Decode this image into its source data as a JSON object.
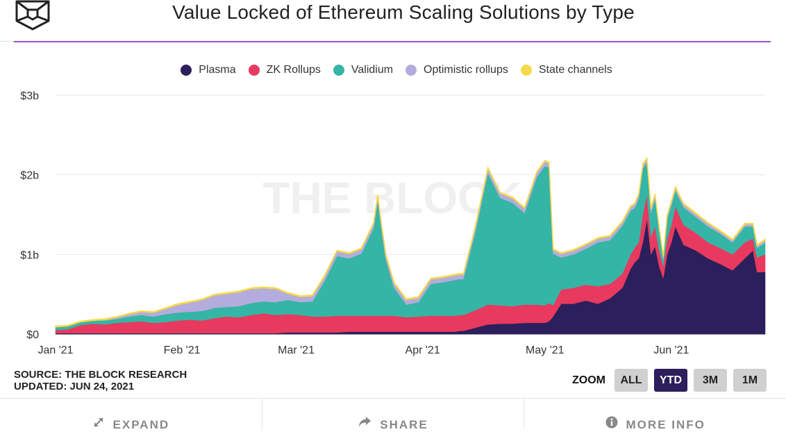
{
  "header": {
    "title": "Value Locked of Ethereum Scaling Solutions by Type",
    "logo_icon": "the-block-cube-logo"
  },
  "legend": [
    {
      "name": "Plasma",
      "color": "#2b1f5c"
    },
    {
      "name": "ZK Rollups",
      "color": "#e8395f"
    },
    {
      "name": "Validium",
      "color": "#35b5a5"
    },
    {
      "name": "Optimistic rollups",
      "color": "#b4acdc"
    },
    {
      "name": "State channels",
      "color": "#f5d94a"
    }
  ],
  "watermark": "THE BLOCK",
  "chart_data": {
    "type": "area",
    "stacked": true,
    "title": "Value Locked of Ethereum Scaling Solutions by Type",
    "xlabel": "",
    "ylabel": "",
    "ylim": [
      0,
      3
    ],
    "y_unit": "$b",
    "y_ticks": [
      "$0",
      "$1b",
      "$2b",
      "$3b"
    ],
    "x_ticks": [
      {
        "label": "Jan '21",
        "day": 0
      },
      {
        "label": "Feb '21",
        "day": 31
      },
      {
        "label": "Mar '21",
        "day": 59
      },
      {
        "label": "Apr '21",
        "day": 90
      },
      {
        "label": "May '21",
        "day": 120
      },
      {
        "label": "Jun '21",
        "day": 151
      }
    ],
    "x_range_days": [
      0,
      174
    ],
    "grid": true,
    "legend_position": "top-center",
    "x": [
      0,
      3,
      6,
      9,
      12,
      15,
      18,
      21,
      24,
      27,
      30,
      33,
      36,
      39,
      42,
      45,
      48,
      51,
      54,
      57,
      60,
      63,
      66,
      69,
      72,
      75,
      78,
      79,
      80,
      81,
      83,
      86,
      89,
      92,
      95,
      98,
      99,
      100,
      103,
      106,
      109,
      112,
      115,
      118,
      120,
      121,
      122,
      124,
      127,
      130,
      133,
      136,
      139,
      141,
      142,
      143,
      144,
      145,
      146,
      147,
      148,
      149,
      150,
      151,
      152,
      154,
      157,
      160,
      163,
      166,
      169,
      171,
      172,
      174
    ],
    "series": [
      {
        "name": "Plasma",
        "values": [
          0.01,
          0.01,
          0.01,
          0.01,
          0.01,
          0.01,
          0.01,
          0.01,
          0.01,
          0.01,
          0.01,
          0.01,
          0.01,
          0.01,
          0.01,
          0.01,
          0.01,
          0.01,
          0.01,
          0.02,
          0.02,
          0.02,
          0.02,
          0.02,
          0.03,
          0.03,
          0.03,
          0.03,
          0.03,
          0.03,
          0.03,
          0.03,
          0.03,
          0.03,
          0.03,
          0.03,
          0.04,
          0.04,
          0.08,
          0.12,
          0.13,
          0.13,
          0.14,
          0.14,
          0.14,
          0.16,
          0.22,
          0.38,
          0.38,
          0.42,
          0.38,
          0.45,
          0.58,
          0.82,
          0.9,
          0.95,
          1.15,
          1.45,
          1.0,
          1.1,
          0.85,
          0.7,
          1.0,
          1.15,
          1.35,
          1.12,
          1.05,
          0.95,
          0.88,
          0.8,
          0.95,
          1.05,
          0.78,
          0.78
        ]
      },
      {
        "name": "ZK Rollups",
        "values": [
          0.04,
          0.05,
          0.1,
          0.12,
          0.11,
          0.13,
          0.14,
          0.15,
          0.13,
          0.14,
          0.16,
          0.17,
          0.16,
          0.19,
          0.21,
          0.2,
          0.23,
          0.25,
          0.23,
          0.23,
          0.22,
          0.2,
          0.2,
          0.21,
          0.2,
          0.2,
          0.2,
          0.2,
          0.2,
          0.2,
          0.2,
          0.18,
          0.19,
          0.2,
          0.2,
          0.2,
          0.2,
          0.2,
          0.22,
          0.25,
          0.23,
          0.22,
          0.23,
          0.23,
          0.22,
          0.23,
          0.14,
          0.18,
          0.2,
          0.2,
          0.22,
          0.18,
          0.18,
          0.18,
          0.18,
          0.2,
          0.35,
          0.3,
          0.22,
          0.25,
          0.2,
          0.15,
          0.2,
          0.22,
          0.25,
          0.25,
          0.22,
          0.2,
          0.2,
          0.2,
          0.2,
          0.15,
          0.18,
          0.22
        ]
      },
      {
        "name": "Validium",
        "values": [
          0.04,
          0.04,
          0.04,
          0.04,
          0.05,
          0.05,
          0.07,
          0.08,
          0.08,
          0.1,
          0.1,
          0.1,
          0.12,
          0.13,
          0.12,
          0.14,
          0.15,
          0.15,
          0.16,
          0.18,
          0.16,
          0.19,
          0.45,
          0.75,
          0.72,
          0.78,
          1.1,
          1.45,
          1.05,
          0.7,
          0.35,
          0.16,
          0.18,
          0.4,
          0.42,
          0.45,
          0.45,
          0.45,
          1.0,
          1.65,
          1.35,
          1.3,
          1.15,
          1.6,
          1.75,
          1.7,
          0.65,
          0.4,
          0.42,
          0.45,
          0.55,
          0.55,
          0.6,
          0.55,
          0.5,
          0.55,
          0.58,
          0.4,
          0.3,
          0.35,
          0.25,
          0.08,
          0.25,
          0.25,
          0.2,
          0.22,
          0.2,
          0.2,
          0.18,
          0.15,
          0.2,
          0.15,
          0.12,
          0.15
        ]
      },
      {
        "name": "Optimistic rollups",
        "values": [
          0.0,
          0.0,
          0.0,
          0.0,
          0.01,
          0.02,
          0.03,
          0.04,
          0.05,
          0.07,
          0.1,
          0.12,
          0.14,
          0.16,
          0.17,
          0.18,
          0.18,
          0.17,
          0.17,
          0.08,
          0.07,
          0.07,
          0.06,
          0.06,
          0.06,
          0.06,
          0.06,
          0.06,
          0.06,
          0.06,
          0.06,
          0.06,
          0.06,
          0.06,
          0.06,
          0.06,
          0.06,
          0.06,
          0.06,
          0.06,
          0.06,
          0.06,
          0.06,
          0.06,
          0.06,
          0.06,
          0.05,
          0.05,
          0.05,
          0.05,
          0.05,
          0.05,
          0.05,
          0.05,
          0.05,
          0.05,
          0.05,
          0.05,
          0.05,
          0.05,
          0.04,
          0.04,
          0.04,
          0.04,
          0.04,
          0.04,
          0.04,
          0.04,
          0.03,
          0.03,
          0.03,
          0.03,
          0.03,
          0.03
        ]
      },
      {
        "name": "State channels",
        "values": [
          0.01,
          0.01,
          0.01,
          0.01,
          0.01,
          0.01,
          0.01,
          0.01,
          0.01,
          0.01,
          0.01,
          0.01,
          0.01,
          0.01,
          0.01,
          0.01,
          0.01,
          0.01,
          0.01,
          0.01,
          0.01,
          0.01,
          0.01,
          0.01,
          0.01,
          0.01,
          0.01,
          0.01,
          0.01,
          0.01,
          0.01,
          0.01,
          0.01,
          0.01,
          0.01,
          0.01,
          0.01,
          0.01,
          0.01,
          0.01,
          0.01,
          0.01,
          0.01,
          0.01,
          0.01,
          0.01,
          0.01,
          0.01,
          0.01,
          0.01,
          0.01,
          0.01,
          0.01,
          0.01,
          0.01,
          0.01,
          0.01,
          0.01,
          0.01,
          0.01,
          0.01,
          0.01,
          0.01,
          0.01,
          0.01,
          0.01,
          0.01,
          0.01,
          0.01,
          0.01,
          0.01,
          0.01,
          0.01,
          0.01
        ]
      }
    ]
  },
  "footer_info": {
    "source": "SOURCE: THE BLOCK RESEARCH",
    "updated": "UPDATED: JUN 24, 2021"
  },
  "zoom": {
    "label": "ZOOM",
    "options": [
      "ALL",
      "YTD",
      "3M",
      "1M"
    ],
    "selected": "YTD"
  },
  "actions": [
    {
      "label": "EXPAND",
      "icon": "expand-icon"
    },
    {
      "label": "SHARE",
      "icon": "share-icon"
    },
    {
      "label": "MORE INFO",
      "icon": "info-icon"
    }
  ]
}
